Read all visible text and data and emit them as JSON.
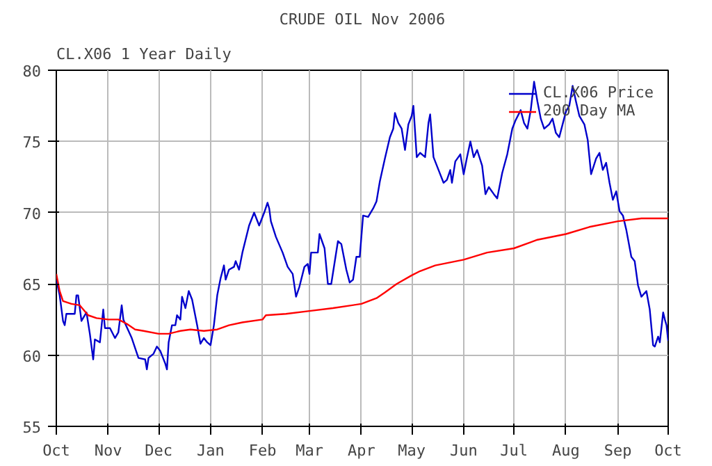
{
  "chart_data": {
    "type": "line",
    "title": "CRUDE OIL Nov 2006",
    "subtitle": "CL.X06 1 Year Daily",
    "xlim": [
      "2005-10-01",
      "2006-10-01"
    ],
    "xticks": [
      {
        "value": "2005-10-01",
        "label": "Oct"
      },
      {
        "value": "2005-11-01",
        "label": "Nov"
      },
      {
        "value": "2005-12-01",
        "label": "Dec"
      },
      {
        "value": "2006-01-01",
        "label": "Jan"
      },
      {
        "value": "2006-02-01",
        "label": "Feb"
      },
      {
        "value": "2006-03-01",
        "label": "Mar"
      },
      {
        "value": "2006-04-01",
        "label": "Apr"
      },
      {
        "value": "2006-05-01",
        "label": "May"
      },
      {
        "value": "2006-06-01",
        "label": "Jun"
      },
      {
        "value": "2006-07-01",
        "label": "Jul"
      },
      {
        "value": "2006-08-01",
        "label": "Aug"
      },
      {
        "value": "2006-09-01",
        "label": "Sep"
      },
      {
        "value": "2006-10-01",
        "label": "Oct"
      }
    ],
    "ylim": [
      55,
      80
    ],
    "yticks": [
      55,
      60,
      65,
      70,
      75,
      80
    ],
    "grid": true,
    "legend": "top right",
    "line_style": "solid",
    "series": [
      {
        "name": "CL.X06 Price",
        "color": "#0000cc",
        "x": [
          "2005-10-01",
          "2005-10-03",
          "2005-10-05",
          "2005-10-06",
          "2005-10-07",
          "2005-10-12",
          "2005-10-13",
          "2005-10-14",
          "2005-10-16",
          "2005-10-19",
          "2005-10-21",
          "2005-10-23",
          "2005-10-24",
          "2005-10-27",
          "2005-10-29",
          "2005-10-30",
          "2005-11-02",
          "2005-11-05",
          "2005-11-07",
          "2005-11-09",
          "2005-11-10",
          "2005-11-15",
          "2005-11-19",
          "2005-11-23",
          "2005-11-24",
          "2005-11-25",
          "2005-11-28",
          "2005-11-30",
          "2005-12-02",
          "2005-12-05",
          "2005-12-06",
          "2005-12-07",
          "2005-12-09",
          "2005-12-11",
          "2005-12-12",
          "2005-12-14",
          "2005-12-15",
          "2005-12-17",
          "2005-12-19",
          "2005-12-21",
          "2005-12-24",
          "2005-12-26",
          "2005-12-28",
          "2005-12-30",
          "2006-01-01",
          "2006-01-03",
          "2006-01-05",
          "2006-01-07",
          "2006-01-09",
          "2006-01-10",
          "2006-01-12",
          "2006-01-15",
          "2006-01-16",
          "2006-01-18",
          "2006-01-20",
          "2006-01-24",
          "2006-01-27",
          "2006-01-30",
          "2006-02-02",
          "2006-02-04",
          "2006-02-05",
          "2006-02-06",
          "2006-02-09",
          "2006-02-13",
          "2006-02-16",
          "2006-02-19",
          "2006-02-21",
          "2006-02-23",
          "2006-02-26",
          "2006-02-28",
          "2006-03-01",
          "2006-03-02",
          "2006-03-06",
          "2006-03-07",
          "2006-03-10",
          "2006-03-12",
          "2006-03-14",
          "2006-03-18",
          "2006-03-20",
          "2006-03-23",
          "2006-03-25",
          "2006-03-27",
          "2006-03-29",
          "2006-03-31",
          "2006-04-02",
          "2006-04-05",
          "2006-04-08",
          "2006-04-10",
          "2006-04-12",
          "2006-04-15",
          "2006-04-18",
          "2006-04-20",
          "2006-04-21",
          "2006-04-23",
          "2006-04-25",
          "2006-04-27",
          "2006-04-29",
          "2006-05-01",
          "2006-05-02",
          "2006-05-04",
          "2006-05-06",
          "2006-05-09",
          "2006-05-11",
          "2006-05-12",
          "2006-05-14",
          "2006-05-17",
          "2006-05-20",
          "2006-05-22",
          "2006-05-24",
          "2006-05-25",
          "2006-05-27",
          "2006-05-30",
          "2006-06-01",
          "2006-06-03",
          "2006-06-05",
          "2006-06-07",
          "2006-06-09",
          "2006-06-12",
          "2006-06-14",
          "2006-06-16",
          "2006-06-19",
          "2006-06-21",
          "2006-06-24",
          "2006-06-27",
          "2006-06-30",
          "2006-07-02",
          "2006-07-05",
          "2006-07-07",
          "2006-07-09",
          "2006-07-11",
          "2006-07-13",
          "2006-07-15",
          "2006-07-17",
          "2006-07-19",
          "2006-07-22",
          "2006-07-24",
          "2006-07-26",
          "2006-07-28",
          "2006-07-30",
          "2006-08-01",
          "2006-08-03",
          "2006-08-05",
          "2006-08-07",
          "2006-08-09",
          "2006-08-12",
          "2006-08-14",
          "2006-08-16",
          "2006-08-19",
          "2006-08-21",
          "2006-08-23",
          "2006-08-25",
          "2006-08-27",
          "2006-08-29",
          "2006-08-31",
          "2006-09-02",
          "2006-09-04",
          "2006-09-06",
          "2006-09-09",
          "2006-09-11",
          "2006-09-13",
          "2006-09-15",
          "2006-09-18",
          "2006-09-20",
          "2006-09-22",
          "2006-09-23",
          "2006-09-25",
          "2006-09-26",
          "2006-09-28",
          "2006-09-29",
          "2006-09-30",
          "2006-10-01"
        ],
        "values": [
          65.3,
          64.2,
          62.4,
          62.1,
          62.9,
          62.9,
          64.2,
          64.2,
          62.4,
          63.0,
          61.5,
          59.7,
          61.1,
          60.9,
          63.2,
          61.9,
          61.9,
          61.2,
          61.6,
          63.5,
          62.5,
          61.2,
          59.8,
          59.7,
          59.0,
          59.8,
          60.1,
          60.6,
          60.3,
          59.4,
          59.0,
          60.9,
          62.1,
          62.1,
          62.8,
          62.5,
          64.1,
          63.3,
          64.5,
          63.9,
          62.1,
          60.8,
          61.2,
          60.9,
          60.7,
          62.1,
          64.2,
          65.4,
          66.3,
          65.3,
          66.0,
          66.2,
          66.6,
          66.0,
          67.2,
          69.1,
          70.0,
          69.1,
          70.0,
          70.7,
          70.3,
          69.4,
          68.3,
          67.2,
          66.2,
          65.7,
          64.1,
          64.8,
          66.2,
          66.4,
          65.7,
          67.2,
          67.2,
          68.5,
          67.5,
          65.0,
          65.0,
          68.0,
          67.8,
          66.0,
          65.1,
          65.3,
          66.9,
          66.9,
          69.8,
          69.7,
          70.3,
          70.8,
          72.2,
          73.8,
          75.3,
          75.9,
          77.0,
          76.3,
          75.9,
          74.4,
          76.2,
          76.8,
          77.5,
          73.9,
          74.2,
          73.9,
          76.3,
          76.9,
          73.9,
          73.0,
          72.1,
          72.3,
          73.0,
          72.1,
          73.6,
          74.1,
          72.7,
          73.9,
          75.0,
          73.9,
          74.4,
          73.3,
          71.3,
          71.8,
          71.3,
          71.0,
          72.8,
          74.1,
          75.9,
          76.5,
          77.2,
          76.3,
          75.9,
          77.2,
          79.2,
          77.8,
          76.6,
          75.9,
          76.2,
          76.6,
          75.6,
          75.3,
          76.2,
          77.1,
          77.5,
          78.9,
          77.8,
          76.8,
          76.2,
          75.1,
          72.7,
          73.8,
          74.2,
          73.0,
          73.5,
          72.1,
          70.9,
          71.5,
          70.1,
          69.8,
          68.8,
          66.9,
          66.6,
          64.9,
          64.1,
          64.5,
          63.2,
          60.7,
          60.6,
          61.3,
          60.9,
          63.0,
          62.5,
          62.1,
          61.0
        ]
      },
      {
        "name": "200 Day MA",
        "color": "#ff0000",
        "x": [
          "2005-10-01",
          "2005-10-03",
          "2005-10-05",
          "2005-10-10",
          "2005-10-15",
          "2005-10-20",
          "2005-10-25",
          "2005-11-01",
          "2005-11-07",
          "2005-11-12",
          "2005-11-17",
          "2005-11-22",
          "2005-12-01",
          "2005-12-07",
          "2005-12-14",
          "2005-12-20",
          "2005-12-28",
          "2006-01-05",
          "2006-01-12",
          "2006-01-20",
          "2006-02-01",
          "2006-02-03",
          "2006-02-15",
          "2006-03-01",
          "2006-03-15",
          "2006-04-01",
          "2006-04-10",
          "2006-04-15",
          "2006-04-22",
          "2006-05-01",
          "2006-05-06",
          "2006-05-15",
          "2006-06-01",
          "2006-06-15",
          "2006-07-01",
          "2006-07-15",
          "2006-08-01",
          "2006-08-15",
          "2006-09-01",
          "2006-09-15",
          "2006-10-01"
        ],
        "values": [
          65.7,
          64.5,
          63.8,
          63.6,
          63.5,
          62.8,
          62.6,
          62.5,
          62.5,
          62.2,
          61.8,
          61.7,
          61.5,
          61.5,
          61.7,
          61.8,
          61.7,
          61.8,
          62.1,
          62.3,
          62.5,
          62.8,
          62.9,
          63.1,
          63.3,
          63.6,
          64.0,
          64.4,
          65.0,
          65.6,
          65.9,
          66.3,
          66.7,
          67.2,
          67.5,
          68.1,
          68.5,
          69.0,
          69.4,
          69.6,
          69.6
        ]
      }
    ]
  }
}
